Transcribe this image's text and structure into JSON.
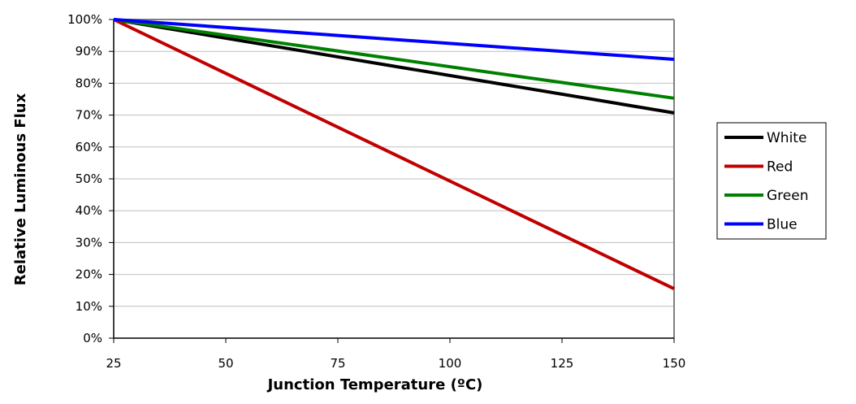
{
  "chart_data": {
    "type": "line",
    "title": "",
    "xlabel": "Junction Temperature (ºC)",
    "ylabel": "Relative Luminous Flux",
    "xlim": [
      25,
      150
    ],
    "ylim": [
      0,
      100
    ],
    "x_ticks": [
      "25",
      "50",
      "75",
      "100",
      "125",
      "150"
    ],
    "x_tick_values": [
      25,
      50,
      75,
      100,
      125,
      150
    ],
    "y_ticks": [
      "0%",
      "10%",
      "20%",
      "30%",
      "40%",
      "50%",
      "60%",
      "70%",
      "80%",
      "90%",
      "100%"
    ],
    "y_tick_values": [
      0,
      10,
      20,
      30,
      40,
      50,
      60,
      70,
      80,
      90,
      100
    ],
    "grid": true,
    "legend_position": "right",
    "x": [
      25,
      150
    ],
    "series": [
      {
        "name": "White",
        "color": "#000000",
        "values": [
          100,
          70.7
        ]
      },
      {
        "name": "Red",
        "color": "#c00000",
        "values": [
          100,
          15.5
        ]
      },
      {
        "name": "Green",
        "color": "#008000",
        "values": [
          100,
          75.3
        ]
      },
      {
        "name": "Blue",
        "color": "#0000ff",
        "values": [
          100,
          87.5
        ]
      }
    ]
  }
}
